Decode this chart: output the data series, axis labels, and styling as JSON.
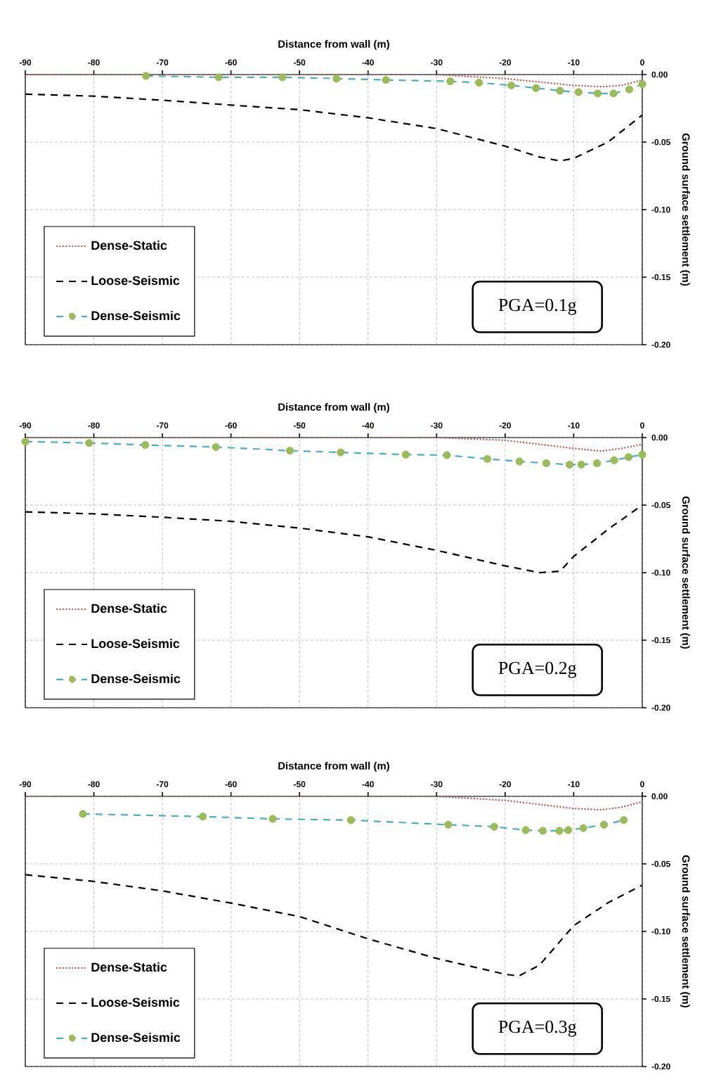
{
  "chart_data": [
    {
      "type": "line",
      "xlabel": "Distance from wall (m)",
      "ylabel": "Ground surface settlement (m)",
      "xlim": [
        -90,
        0
      ],
      "xticks": [
        -90,
        -80,
        -70,
        -60,
        -50,
        -40,
        -30,
        -20,
        -10,
        0
      ],
      "ylim": [
        -0.2,
        0
      ],
      "yticks": [
        {
          "value": 0,
          "label": "0.00"
        },
        {
          "value": -0.05,
          "label": "-0.05"
        },
        {
          "value": -0.1,
          "label": "-0.10"
        },
        {
          "value": -0.15,
          "label": "-0.15"
        },
        {
          "value": -0.2,
          "label": "-0.20"
        }
      ],
      "grid": true,
      "legend": "bottom left",
      "annotations": [
        "PGA=0.1g"
      ],
      "series": [
        {
          "name": "Dense-Static",
          "color": "#c0504d",
          "line_style": "dotted",
          "marker": "none",
          "x": [
            -90,
            -30,
            -20,
            -10,
            -6,
            -3,
            0
          ],
          "values": [
            0,
            0,
            -0.003,
            -0.008,
            -0.009,
            -0.008,
            -0.004
          ]
        },
        {
          "name": "Loose-Seismic",
          "color": "#000000",
          "line_style": "dashed",
          "marker": "none",
          "x": [
            -90,
            -80,
            -70,
            -60,
            -50,
            -40,
            -30,
            -20,
            -15,
            -12,
            -10,
            -5,
            0
          ],
          "values": [
            -0.0145,
            -0.016,
            -0.019,
            -0.0226,
            -0.026,
            -0.032,
            -0.04,
            -0.053,
            -0.061,
            -0.064,
            -0.062,
            -0.05,
            -0.03
          ]
        },
        {
          "name": "Dense-Seismic",
          "color": "#4bacc6",
          "line_style": "dashed",
          "marker": "circle",
          "colors": [
            "#9bbb59",
            "#9bbb59",
            "#9bbb59",
            "#9bbb59",
            "#9bbb59",
            "#9bbb59",
            "#9bbb59",
            "#9bbb59",
            "#9bbb59",
            "#9bbb59",
            "#9bbb59",
            "#9bbb59",
            "#9bbb59",
            "#9bbb59",
            "#9bbb59"
          ],
          "x": [
            -72.4,
            -61.8,
            -52.5,
            -44.6,
            -37.4,
            -28,
            -23.8,
            -19.1,
            -15.5,
            -12,
            -9.3,
            -6.5,
            -4.2,
            -1.9,
            0
          ],
          "values": [
            -0.001,
            -0.002,
            -0.002,
            -0.003,
            -0.004,
            -0.005,
            -0.006,
            -0.008,
            -0.01,
            -0.012,
            -0.013,
            -0.014,
            -0.014,
            -0.011,
            -0.007
          ]
        }
      ]
    },
    {
      "type": "line",
      "xlabel": "Distance from wall (m)",
      "ylabel": "Ground surface settlement (m)",
      "xlim": [
        -90,
        0
      ],
      "xticks": [
        -90,
        -80,
        -70,
        -60,
        -50,
        -40,
        -30,
        -20,
        -10,
        0
      ],
      "ylim": [
        -0.2,
        0
      ],
      "yticks": [
        {
          "value": 0,
          "label": "0.00"
        },
        {
          "value": -0.05,
          "label": "-0.05"
        },
        {
          "value": -0.1,
          "label": "-0.10"
        },
        {
          "value": -0.15,
          "label": "-0.15"
        },
        {
          "value": -0.2,
          "label": "-0.20"
        }
      ],
      "grid": true,
      "legend": "bottom left",
      "annotations": [
        "PGA=0.2g"
      ],
      "series": [
        {
          "name": "Dense-Static",
          "color": "#c0504d",
          "line_style": "dotted",
          "marker": "none",
          "x": [
            -90,
            -30,
            -20,
            -10,
            -6,
            -3,
            0
          ],
          "values": [
            0,
            0,
            -0.002,
            -0.008,
            -0.01,
            -0.008,
            -0.005
          ]
        },
        {
          "name": "Loose-Seismic",
          "color": "#000000",
          "line_style": "dashed",
          "marker": "none",
          "x": [
            -90,
            -80,
            -70,
            -60,
            -50,
            -40,
            -30,
            -20,
            -15,
            -12,
            -10,
            -5,
            0
          ],
          "values": [
            -0.055,
            -0.0565,
            -0.059,
            -0.062,
            -0.067,
            -0.0735,
            -0.0835,
            -0.095,
            -0.1,
            -0.099,
            -0.088,
            -0.068,
            -0.05
          ]
        },
        {
          "name": "Dense-Seismic",
          "color": "#4bacc6",
          "line_style": "dashed",
          "marker": "circle",
          "colors": [
            "#9bbb59",
            "#9bbb59",
            "#9bbb59",
            "#9bbb59",
            "#9bbb59",
            "#9bbb59",
            "#9bbb59",
            "#9bbb59",
            "#9bbb59",
            "#9bbb59",
            "#9bbb59",
            "#9bbb59",
            "#9bbb59",
            "#9bbb59",
            "#9bbb59",
            "#9bbb59",
            "#9bbb59"
          ],
          "x": [
            -90,
            -80.7,
            -72.5,
            -62.2,
            -51.4,
            -44,
            -34.5,
            -28.5,
            -22.6,
            -17.9,
            -14,
            -10.6,
            -8.9,
            -6.6,
            -4.1,
            -2,
            0
          ],
          "values": [
            -0.003,
            -0.004,
            -0.0055,
            -0.007,
            -0.0097,
            -0.011,
            -0.0126,
            -0.013,
            -0.0158,
            -0.0177,
            -0.019,
            -0.02,
            -0.02,
            -0.019,
            -0.0168,
            -0.0145,
            -0.0126
          ]
        }
      ]
    },
    {
      "type": "line",
      "xlabel": "Distance from wall (m)",
      "ylabel": "Ground surface settlement (m)",
      "xlim": [
        -90,
        0
      ],
      "xticks": [
        -90,
        -80,
        -70,
        -60,
        -50,
        -40,
        -30,
        -20,
        -10,
        0
      ],
      "ylim": [
        -0.2,
        0
      ],
      "yticks": [
        {
          "value": 0,
          "label": "0.00"
        },
        {
          "value": -0.05,
          "label": "-0.05"
        },
        {
          "value": -0.1,
          "label": "-0.10"
        },
        {
          "value": -0.15,
          "label": "-0.15"
        },
        {
          "value": -0.2,
          "label": "-0.20"
        }
      ],
      "grid": true,
      "legend": "bottom left",
      "annotations": [
        "PGA=0.3g"
      ],
      "series": [
        {
          "name": "Dense-Static",
          "color": "#c0504d",
          "line_style": "dotted",
          "marker": "none",
          "x": [
            -90,
            -30,
            -20,
            -10,
            -6,
            -3,
            0
          ],
          "values": [
            0,
            0,
            -0.003,
            -0.009,
            -0.01,
            -0.008,
            -0.004
          ]
        },
        {
          "name": "Loose-Seismic",
          "color": "#000000",
          "line_style": "dashed",
          "marker": "none",
          "x": [
            -90,
            -80,
            -70,
            -60,
            -50,
            -40,
            -30,
            -20,
            -18,
            -15,
            -10,
            -5,
            0
          ],
          "values": [
            -0.058,
            -0.063,
            -0.07,
            -0.079,
            -0.089,
            -0.1055,
            -0.12,
            -0.1317,
            -0.133,
            -0.125,
            -0.0957,
            -0.0788,
            -0.0657
          ]
        },
        {
          "name": "Dense-Seismic",
          "color": "#4bacc6",
          "line_style": "dashed",
          "marker": "circle",
          "colors": [
            "#9bbb59",
            "#9bbb59",
            "#9bbb59",
            "#9bbb59",
            "#9bbb59",
            "#9bbb59",
            "#9bbb59",
            "#9bbb59",
            "#9bbb59",
            "#9bbb59",
            "#9bbb59",
            "#9bbb59",
            "#9bbb59"
          ],
          "x": [
            -81.6,
            -64.1,
            -53.9,
            -42.5,
            -28.3,
            -21.6,
            -17,
            -14.5,
            -12.1,
            -10.8,
            -8.6,
            -5.6,
            -2.7
          ],
          "values": [
            -0.013,
            -0.015,
            -0.0167,
            -0.0176,
            -0.021,
            -0.0225,
            -0.025,
            -0.0255,
            -0.0255,
            -0.025,
            -0.0235,
            -0.021,
            -0.0176
          ]
        }
      ]
    }
  ]
}
